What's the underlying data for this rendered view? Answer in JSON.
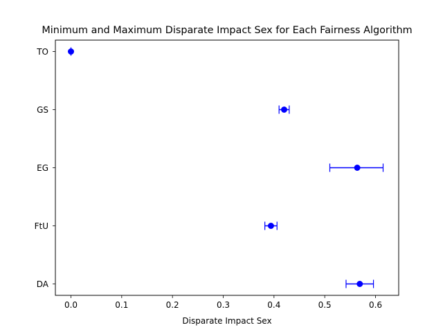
{
  "chart_data": {
    "type": "scatter",
    "title": "Minimum and Maximum Disparate Impact Sex for Each Fairness Algorithm",
    "xlabel": "Disparate Impact Sex",
    "ylabel": "",
    "categories": [
      "TO",
      "GS",
      "EG",
      "FtU",
      "DA"
    ],
    "series": [
      {
        "points": [
          {
            "category": "TO",
            "value": 0.0,
            "min": 0.0,
            "max": 0.0
          },
          {
            "category": "GS",
            "value": 0.42,
            "min": 0.41,
            "max": 0.43
          },
          {
            "category": "EG",
            "value": 0.564,
            "min": 0.51,
            "max": 0.615
          },
          {
            "category": "FtU",
            "value": 0.394,
            "min": 0.382,
            "max": 0.406
          },
          {
            "category": "DA",
            "value": 0.569,
            "min": 0.542,
            "max": 0.596
          }
        ],
        "color": "#0000ff"
      }
    ],
    "xlim": [
      -0.0307,
      0.6457
    ],
    "xticks": [
      0.0,
      0.1,
      0.2,
      0.3,
      0.4,
      0.5,
      0.6
    ],
    "xtick_labels": [
      "0.0",
      "0.1",
      "0.2",
      "0.3",
      "0.4",
      "0.5",
      "0.6"
    ],
    "grid": false,
    "legend": "none"
  }
}
